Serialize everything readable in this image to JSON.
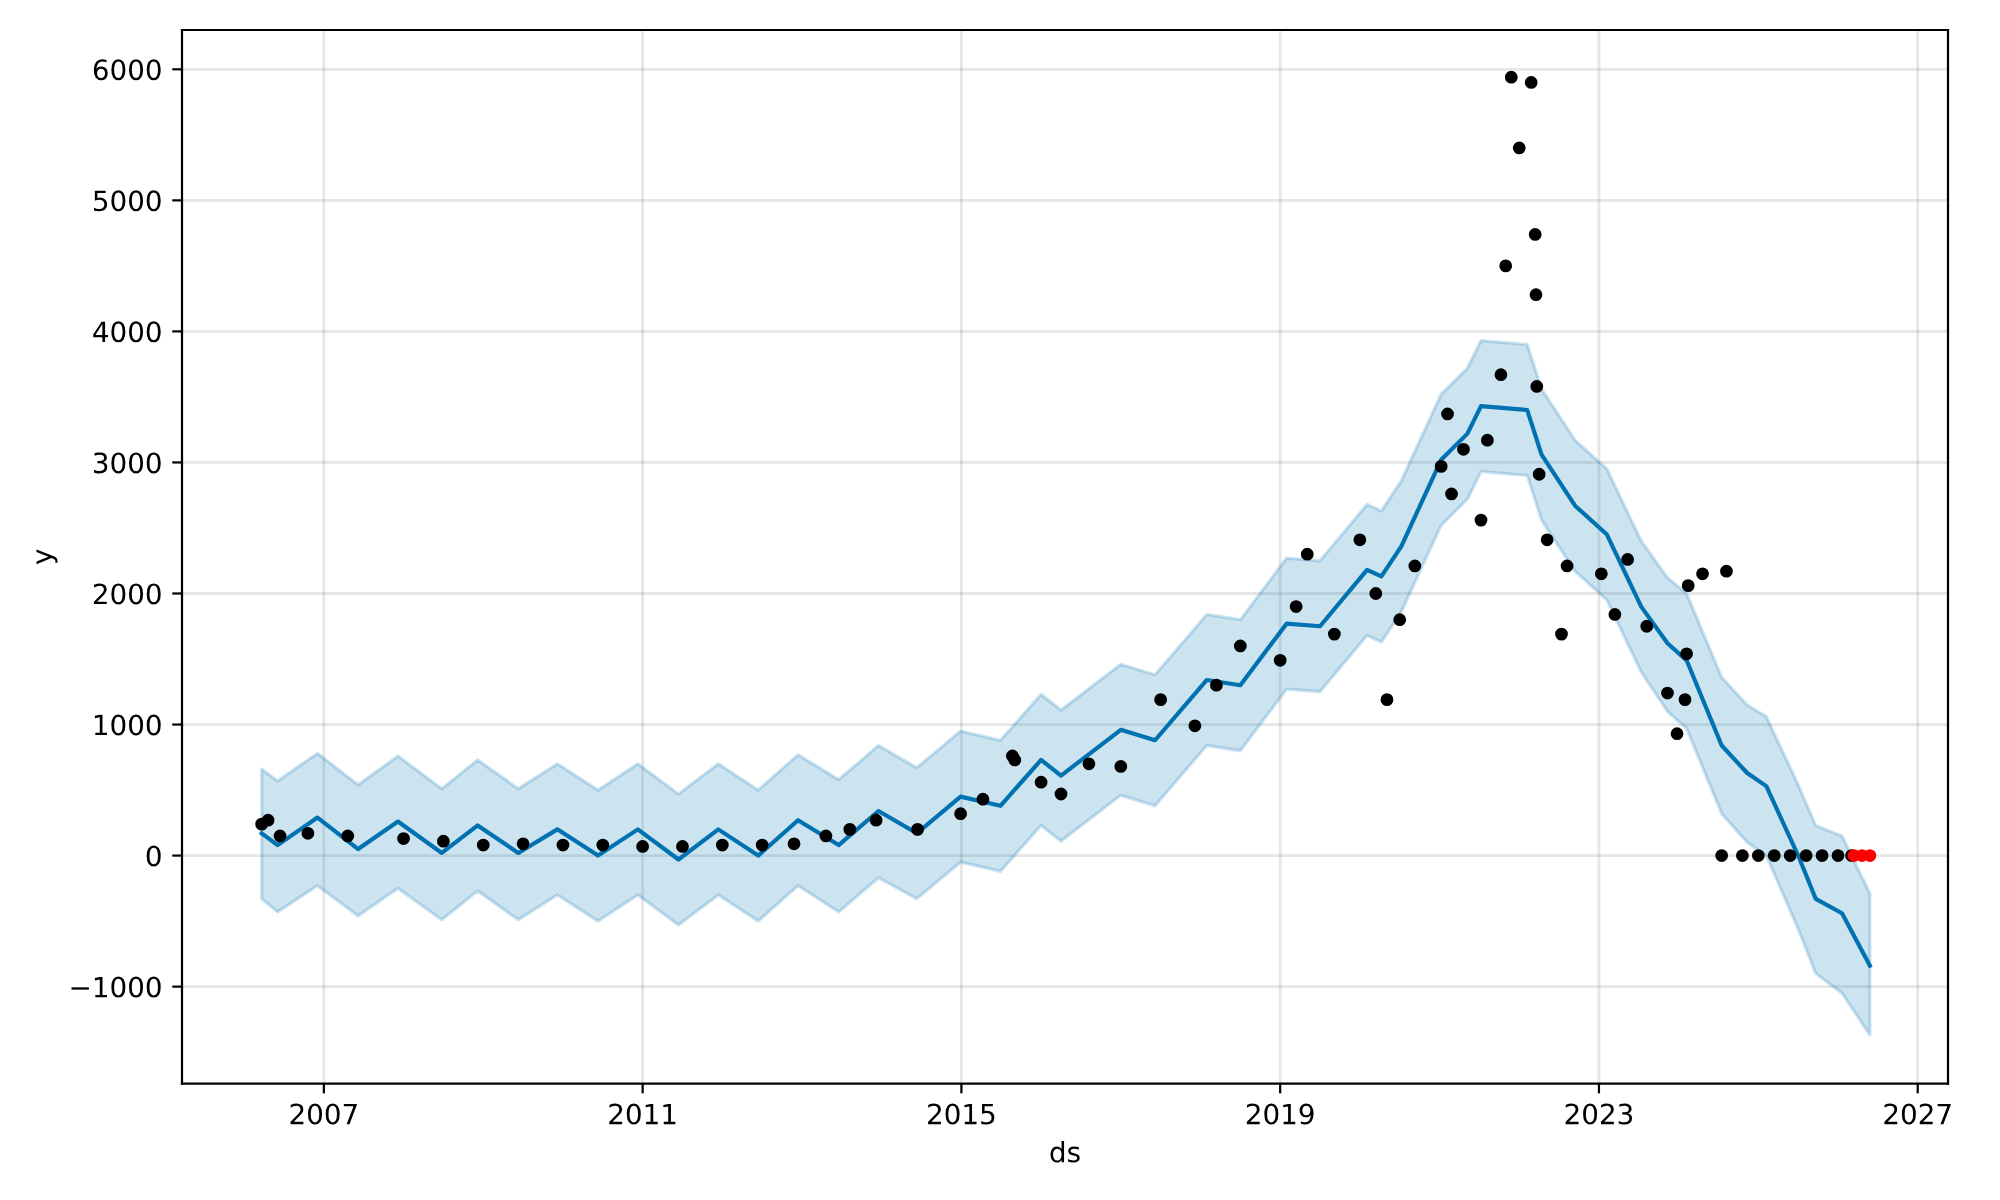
{
  "chart_data": {
    "type": "line",
    "xlabel": "ds",
    "ylabel": "y",
    "xlim": [
      2005.22,
      2027.38
    ],
    "xticks": [
      2007,
      2011,
      2015,
      2019,
      2023,
      2027
    ],
    "ylim": [
      -1740,
      6300
    ],
    "yticks": [
      {
        "value": -1000,
        "label": "−1000"
      },
      0,
      1000,
      2000,
      3000,
      4000,
      5000,
      6000
    ],
    "grid": true,
    "series": [
      {
        "color": "#0072b2",
        "marker": "none",
        "x": [
          2006.22,
          2006.42,
          2006.92,
          2007.43,
          2007.93,
          2008.48,
          2008.93,
          2009.44,
          2009.93,
          2010.44,
          2010.94,
          2011.45,
          2011.95,
          2012.45,
          2012.95,
          2013.46,
          2013.96,
          2014.44,
          2014.99,
          2015.49,
          2016.0,
          2016.25,
          2017.0,
          2017.43,
          2018.08,
          2018.5,
          2019.08,
          2019.5,
          2020.09,
          2020.27,
          2020.52,
          2021.02,
          2021.35,
          2021.52,
          2022.1,
          2022.28,
          2022.7,
          2023.1,
          2023.53,
          2023.86,
          2024.1,
          2024.54,
          2024.86,
          2025.1,
          2025.5,
          2025.72,
          2026.05,
          2026.4
        ],
        "values": [
          170,
          80,
          290,
          50,
          260,
          20,
          230,
          20,
          200,
          0,
          200,
          -30,
          200,
          0,
          270,
          80,
          340,
          170,
          450,
          380,
          730,
          610,
          960,
          880,
          1340,
          1300,
          1770,
          1750,
          2180,
          2130,
          2360,
          3020,
          3220,
          3430,
          3400,
          3060,
          2670,
          2450,
          1900,
          1620,
          1490,
          840,
          630,
          530,
          0,
          -330,
          -440,
          -840
        ],
        "lower": [
          -330,
          -430,
          -230,
          -460,
          -250,
          -490,
          -270,
          -490,
          -300,
          -500,
          -300,
          -530,
          -300,
          -500,
          -230,
          -430,
          -170,
          -330,
          -50,
          -120,
          230,
          110,
          460,
          380,
          840,
          800,
          1270,
          1250,
          1680,
          1630,
          1860,
          2520,
          2720,
          2930,
          2900,
          2560,
          2170,
          1950,
          1400,
          1100,
          970,
          320,
          100,
          0,
          -560,
          -900,
          -1050,
          -1370
        ],
        "upper": [
          660,
          570,
          780,
          540,
          760,
          510,
          730,
          510,
          700,
          500,
          700,
          470,
          700,
          500,
          770,
          580,
          840,
          670,
          950,
          880,
          1230,
          1110,
          1460,
          1380,
          1840,
          1800,
          2270,
          2250,
          2680,
          2630,
          2860,
          3520,
          3720,
          3930,
          3900,
          3560,
          3170,
          2950,
          2400,
          2120,
          2000,
          1360,
          1150,
          1060,
          540,
          230,
          150,
          -290
        ]
      },
      {
        "type": "scatter",
        "color": "#000000",
        "marker": "circle",
        "x": [
          2006.22,
          2006.3,
          2006.45,
          2006.8,
          2007.3,
          2008.0,
          2008.5,
          2009.0,
          2009.5,
          2010.0,
          2010.5,
          2011.0,
          2011.5,
          2012.0,
          2012.5,
          2012.9,
          2013.3,
          2013.6,
          2013.93,
          2014.45,
          2014.99,
          2015.27,
          2015.64,
          2015.67,
          2016.0,
          2016.25,
          2016.6,
          2017.0,
          2017.5,
          2017.93,
          2018.2,
          2018.5,
          2019.0,
          2019.2,
          2019.34,
          2019.68,
          2020.0,
          2020.2,
          2020.34,
          2020.5,
          2020.69,
          2021.02,
          2021.1,
          2021.15,
          2021.3,
          2021.52,
          2021.6,
          2021.77,
          2021.83,
          2021.9,
          2022.0,
          2022.15,
          2022.2,
          2022.21,
          2022.22,
          2022.25,
          2022.35,
          2022.53,
          2022.6,
          2023.03,
          2023.2,
          2023.36,
          2023.6,
          2023.86,
          2023.98,
          2024.08,
          2024.1,
          2024.12,
          2024.3,
          2024.6,
          2024.54,
          2024.8,
          2025.0,
          2025.2,
          2025.4,
          2025.6,
          2025.8,
          2026.0,
          2026.17
        ],
        "values": [
          240,
          270,
          150,
          170,
          150,
          130,
          110,
          80,
          90,
          80,
          80,
          70,
          70,
          80,
          80,
          90,
          150,
          200,
          270,
          200,
          320,
          430,
          760,
          730,
          560,
          470,
          700,
          680,
          1190,
          990,
          1300,
          1600,
          1490,
          1900,
          2300,
          1690,
          2410,
          2000,
          1190,
          1800,
          2210,
          2970,
          3370,
          2760,
          3100,
          2560,
          3170,
          3670,
          4500,
          5940,
          5400,
          5900,
          4740,
          4280,
          3580,
          2910,
          2410,
          1690,
          2210,
          2150,
          1840,
          2260,
          1750,
          1240,
          930,
          1190,
          1540,
          2060,
          2150,
          2170,
          0,
          0,
          0,
          0,
          0,
          0,
          0,
          0,
          0
        ]
      },
      {
        "type": "scatter",
        "color": "#ff0000",
        "marker": "circle",
        "x": [
          2026.2,
          2026.3,
          2026.4
        ],
        "values": [
          0,
          0,
          0
        ]
      }
    ]
  }
}
